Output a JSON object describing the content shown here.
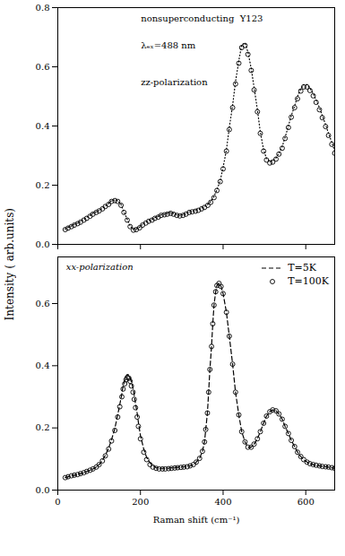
{
  "chart_data": [
    {
      "type": "line",
      "annotations": [
        "nonsuperconducting  Y123",
        "λₑₓ=488 nm",
        "zz-polarization"
      ],
      "y_label": "Intensity ( arb.units)",
      "x": [
        18,
        25,
        33,
        40,
        48,
        55,
        63,
        70,
        78,
        85,
        93,
        100,
        108,
        115,
        123,
        130,
        138,
        145,
        153,
        160,
        168,
        175,
        183,
        190,
        198,
        205,
        213,
        220,
        228,
        235,
        243,
        250,
        258,
        265,
        273,
        280,
        288,
        295,
        303,
        310,
        318,
        325,
        333,
        340,
        348,
        355,
        363,
        370,
        378,
        385,
        393,
        400,
        408,
        415,
        423,
        430,
        438,
        445,
        453,
        460,
        468,
        475,
        483,
        490,
        498,
        505,
        513,
        520,
        528,
        535,
        543,
        550,
        558,
        565,
        573,
        580,
        588,
        595,
        603,
        610,
        618,
        625,
        633,
        640,
        648,
        655,
        663,
        670
      ],
      "series": [
        {
          "name": "T=5K",
          "type": "line",
          "line_style": "dotted",
          "color": "#000000",
          "values": [
            0.052,
            0.058,
            0.062,
            0.068,
            0.072,
            0.078,
            0.085,
            0.092,
            0.098,
            0.105,
            0.11,
            0.115,
            0.122,
            0.13,
            0.138,
            0.148,
            0.15,
            0.148,
            0.135,
            0.11,
            0.085,
            0.062,
            0.05,
            0.052,
            0.058,
            0.068,
            0.075,
            0.08,
            0.085,
            0.09,
            0.095,
            0.1,
            0.102,
            0.105,
            0.108,
            0.105,
            0.1,
            0.098,
            0.1,
            0.105,
            0.11,
            0.112,
            0.115,
            0.118,
            0.122,
            0.128,
            0.135,
            0.145,
            0.162,
            0.185,
            0.215,
            0.26,
            0.32,
            0.395,
            0.47,
            0.55,
            0.62,
            0.675,
            0.68,
            0.65,
            0.595,
            0.53,
            0.455,
            0.38,
            0.32,
            0.29,
            0.28,
            0.282,
            0.292,
            0.308,
            0.33,
            0.362,
            0.4,
            0.435,
            0.468,
            0.5,
            0.525,
            0.54,
            0.54,
            0.528,
            0.51,
            0.488,
            0.462,
            0.435,
            0.405,
            0.375,
            0.345,
            0.315
          ]
        },
        {
          "name": "T=100K",
          "type": "scatter",
          "marker": "open_circle",
          "color": "#000000",
          "values": [
            0.05,
            0.055,
            0.06,
            0.065,
            0.07,
            0.075,
            0.082,
            0.088,
            0.095,
            0.102,
            0.108,
            0.113,
            0.12,
            0.128,
            0.135,
            0.145,
            0.148,
            0.145,
            0.132,
            0.108,
            0.082,
            0.06,
            0.048,
            0.05,
            0.056,
            0.065,
            0.072,
            0.078,
            0.082,
            0.088,
            0.092,
            0.098,
            0.1,
            0.102,
            0.105,
            0.102,
            0.098,
            0.096,
            0.098,
            0.102,
            0.108,
            0.11,
            0.112,
            0.115,
            0.12,
            0.125,
            0.132,
            0.142,
            0.158,
            0.182,
            0.212,
            0.255,
            0.315,
            0.388,
            0.462,
            0.542,
            0.612,
            0.665,
            0.672,
            0.642,
            0.588,
            0.522,
            0.448,
            0.375,
            0.315,
            0.285,
            0.275,
            0.278,
            0.288,
            0.305,
            0.325,
            0.358,
            0.395,
            0.43,
            0.462,
            0.492,
            0.518,
            0.532,
            0.532,
            0.52,
            0.502,
            0.48,
            0.455,
            0.428,
            0.398,
            0.368,
            0.338,
            0.308
          ]
        }
      ],
      "xlim": [
        0,
        670
      ],
      "ylim": [
        0.0,
        0.8
      ],
      "xticks": [
        0,
        200,
        400,
        600
      ],
      "yticks": [
        {
          "value": 0.0,
          "label": "0.0"
        },
        0.2,
        0.4,
        0.6,
        0.8
      ],
      "tick_labels": "y"
    },
    {
      "type": "line",
      "annotations": [
        "xx-polarization"
      ],
      "x_label": "Raman shift (cm⁻¹)",
      "x": [
        18,
        25,
        33,
        40,
        48,
        55,
        63,
        70,
        78,
        85,
        93,
        100,
        108,
        115,
        123,
        130,
        138,
        145,
        150,
        155,
        158,
        162,
        165,
        168,
        172,
        175,
        178,
        182,
        185,
        188,
        192,
        195,
        200,
        208,
        215,
        223,
        230,
        238,
        245,
        253,
        260,
        268,
        275,
        283,
        290,
        298,
        305,
        313,
        320,
        328,
        335,
        343,
        350,
        355,
        358,
        362,
        365,
        368,
        372,
        375,
        378,
        382,
        385,
        390,
        395,
        400,
        408,
        415,
        423,
        430,
        438,
        445,
        453,
        460,
        468,
        475,
        483,
        490,
        498,
        505,
        513,
        520,
        528,
        535,
        543,
        550,
        558,
        565,
        573,
        580,
        588,
        595,
        603,
        610,
        618,
        625,
        633,
        640,
        648,
        655,
        663,
        670
      ],
      "series": [
        {
          "name": "T=5K",
          "type": "line",
          "line_style": "dashed",
          "color": "#000000",
          "values": [
            0.04,
            0.043,
            0.046,
            0.048,
            0.05,
            0.053,
            0.056,
            0.06,
            0.064,
            0.068,
            0.074,
            0.082,
            0.095,
            0.112,
            0.135,
            0.162,
            0.198,
            0.242,
            0.275,
            0.31,
            0.335,
            0.352,
            0.365,
            0.372,
            0.37,
            0.362,
            0.348,
            0.328,
            0.305,
            0.278,
            0.248,
            0.218,
            0.175,
            0.132,
            0.105,
            0.088,
            0.078,
            0.072,
            0.07,
            0.07,
            0.07,
            0.07,
            0.072,
            0.072,
            0.073,
            0.074,
            0.075,
            0.076,
            0.078,
            0.082,
            0.09,
            0.102,
            0.125,
            0.155,
            0.195,
            0.248,
            0.315,
            0.388,
            0.462,
            0.535,
            0.595,
            0.638,
            0.658,
            0.665,
            0.655,
            0.632,
            0.572,
            0.495,
            0.405,
            0.315,
            0.242,
            0.188,
            0.155,
            0.138,
            0.138,
            0.148,
            0.165,
            0.188,
            0.215,
            0.238,
            0.252,
            0.258,
            0.255,
            0.245,
            0.228,
            0.205,
            0.182,
            0.16,
            0.14,
            0.122,
            0.108,
            0.098,
            0.09,
            0.085,
            0.082,
            0.08,
            0.078,
            0.076,
            0.075,
            0.074,
            0.072,
            0.07
          ]
        },
        {
          "name": "T=100K",
          "type": "scatter",
          "marker": "open_circle",
          "color": "#000000",
          "values": [
            0.04,
            0.043,
            0.046,
            0.048,
            0.05,
            0.053,
            0.056,
            0.06,
            0.064,
            0.068,
            0.074,
            0.082,
            0.094,
            0.11,
            0.132,
            0.158,
            0.192,
            0.235,
            0.268,
            0.3,
            0.325,
            0.342,
            0.355,
            0.362,
            0.36,
            0.35,
            0.335,
            0.315,
            0.292,
            0.265,
            0.235,
            0.205,
            0.165,
            0.122,
            0.098,
            0.082,
            0.074,
            0.07,
            0.068,
            0.068,
            0.068,
            0.069,
            0.07,
            0.071,
            0.072,
            0.073,
            0.074,
            0.075,
            0.078,
            0.082,
            0.09,
            0.102,
            0.125,
            0.155,
            0.195,
            0.248,
            0.315,
            0.388,
            0.462,
            0.535,
            0.595,
            0.638,
            0.658,
            0.665,
            0.655,
            0.632,
            0.572,
            0.495,
            0.405,
            0.315,
            0.242,
            0.188,
            0.155,
            0.138,
            0.138,
            0.148,
            0.165,
            0.188,
            0.215,
            0.238,
            0.252,
            0.258,
            0.255,
            0.245,
            0.228,
            0.205,
            0.182,
            0.16,
            0.14,
            0.122,
            0.108,
            0.098,
            0.09,
            0.085,
            0.082,
            0.08,
            0.078,
            0.076,
            0.075,
            0.074,
            0.072,
            0.07
          ]
        }
      ],
      "xlim": [
        0,
        670
      ],
      "ylim": [
        0.0,
        0.75
      ],
      "xticks": [
        0,
        200,
        400,
        600
      ],
      "yticks": [
        {
          "value": 0.0,
          "label": "0.0"
        },
        0.2,
        0.4,
        0.6
      ],
      "legend": "upper right"
    }
  ]
}
